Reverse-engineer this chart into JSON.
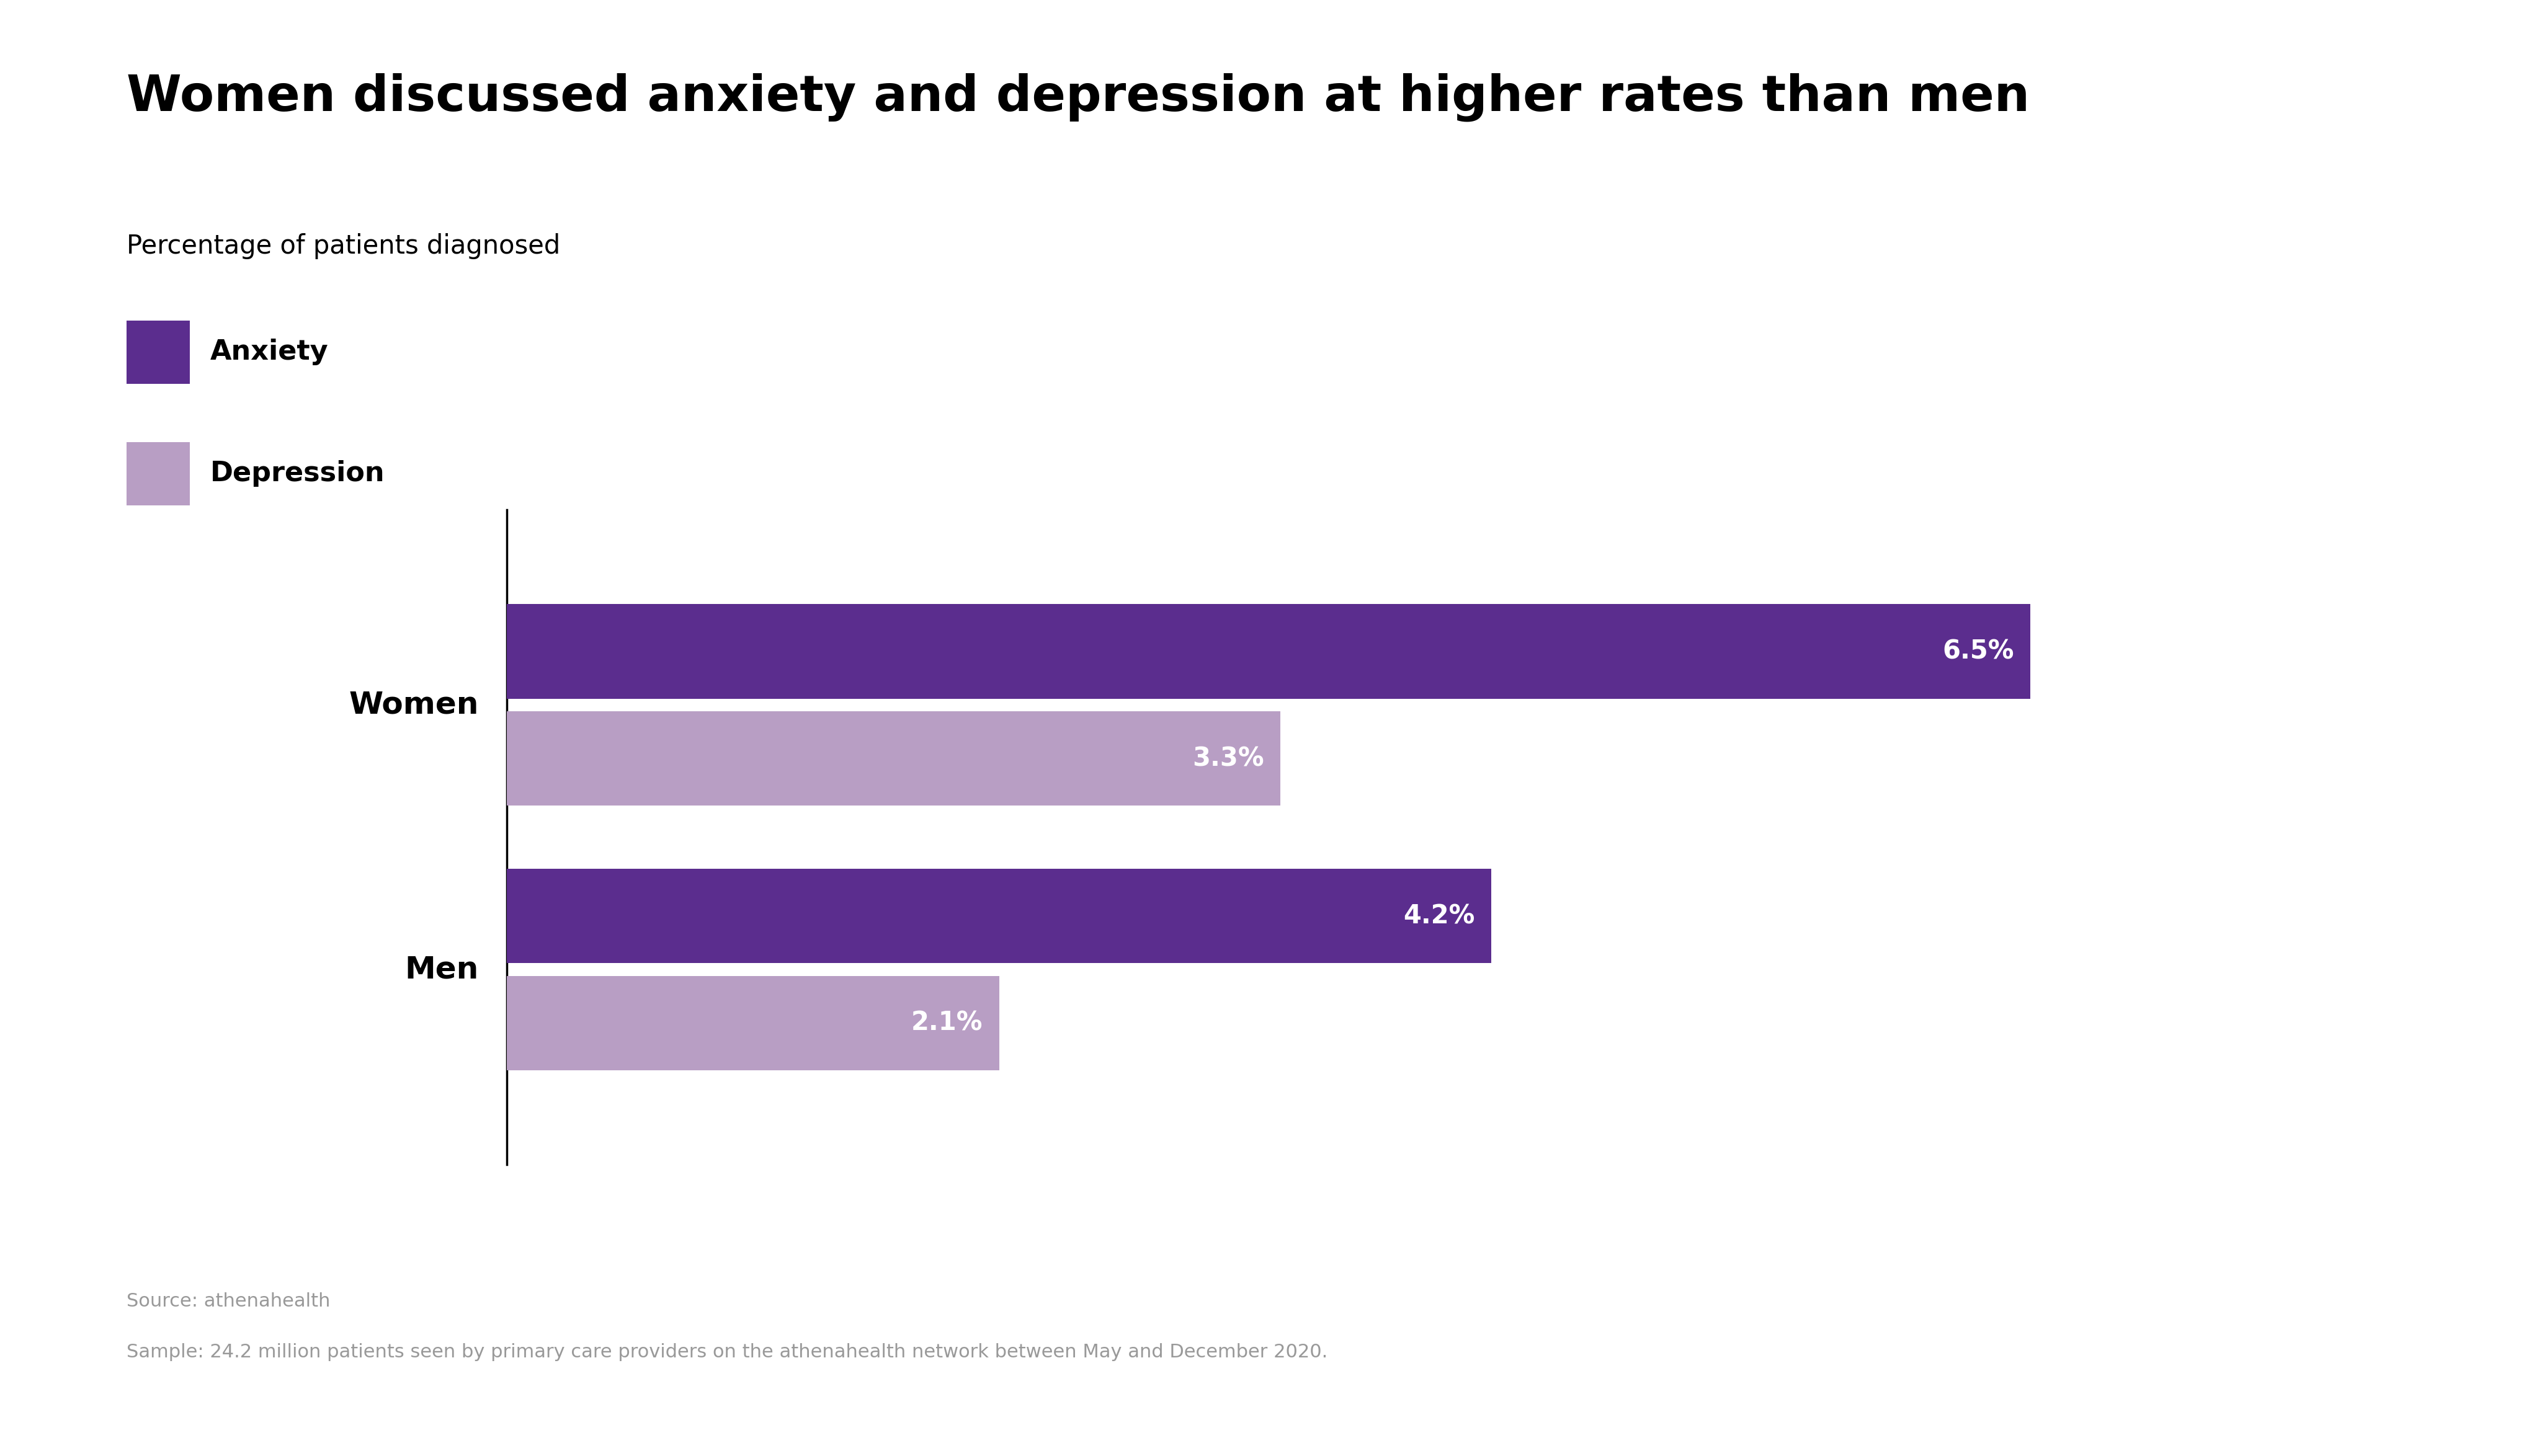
{
  "title": "Women discussed anxiety and depression at higher rates than men",
  "subtitle": "Percentage of patients diagnosed",
  "categories": [
    "Women",
    "Men"
  ],
  "anxiety_values": [
    6.5,
    4.2
  ],
  "depression_values": [
    3.3,
    2.1
  ],
  "anxiety_color": "#5b2d8e",
  "depression_color": "#b89ec4",
  "anxiety_label": "Anxiety",
  "depression_label": "Depression",
  "xlim": [
    0,
    8
  ],
  "background_color": "#ffffff",
  "title_fontsize": 58,
  "subtitle_fontsize": 30,
  "label_fontsize": 36,
  "bar_label_fontsize": 30,
  "legend_fontsize": 32,
  "footer_fontsize": 22,
  "source_text": "Source: athenahealth",
  "sample_text": "Sample: 24.2 million patients seen by primary care providers on the athenahealth network between May and December 2020.",
  "footer_color": "#999999",
  "text_color": "#000000"
}
